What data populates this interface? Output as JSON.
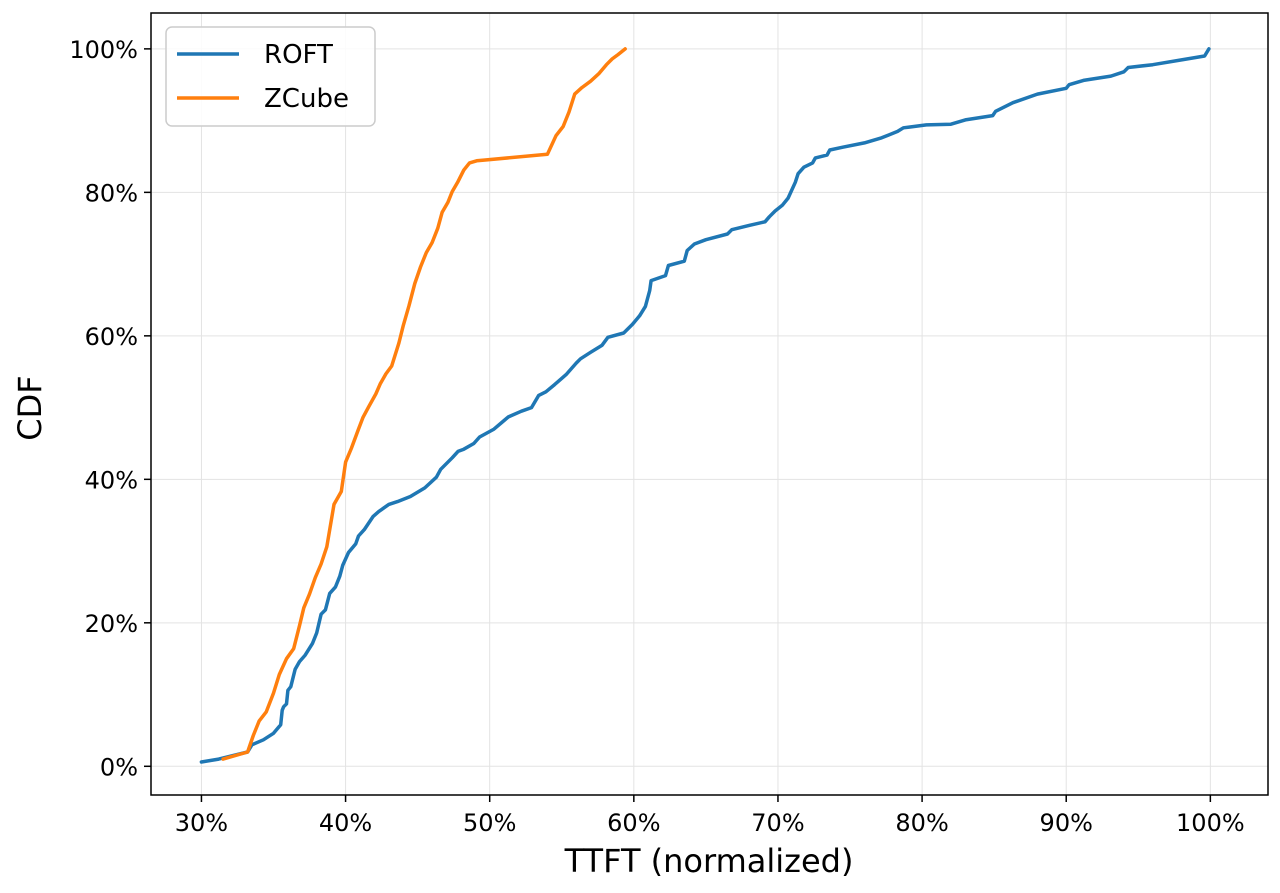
{
  "chart_data": {
    "type": "line",
    "xlabel": "TTFT (normalized)",
    "ylabel": "CDF",
    "xlim": [
      26.5,
      104
    ],
    "ylim": [
      -4,
      105
    ],
    "grid": true,
    "legend_position": "top-left",
    "x_ticks": [
      30,
      40,
      50,
      60,
      70,
      80,
      90,
      100
    ],
    "x_tick_labels": [
      "30%",
      "40%",
      "50%",
      "60%",
      "70%",
      "80%",
      "90%",
      "100%"
    ],
    "y_ticks": [
      0,
      20,
      40,
      60,
      80,
      100
    ],
    "y_tick_labels": [
      "0%",
      "20%",
      "40%",
      "60%",
      "80%",
      "100%"
    ],
    "series": [
      {
        "name": "ROFT",
        "color": "#1f77b4",
        "x": [
          30.0,
          31.2,
          33.2,
          33.5,
          34.3,
          35.0,
          35.5,
          35.6,
          35.7,
          35.9,
          36.0,
          36.2,
          36.5,
          36.8,
          37.2,
          37.7,
          38.0,
          38.3,
          38.6,
          38.9,
          39.3,
          39.6,
          39.8,
          40.2,
          40.7,
          40.9,
          41.3,
          41.9,
          42.3,
          43.0,
          43.6,
          44.5,
          45.5,
          46.3,
          46.6,
          47.4,
          47.8,
          48.2,
          48.9,
          49.3,
          50.3,
          51.0,
          51.3,
          52.2,
          52.9,
          53.4,
          53.9,
          54.5,
          55.3,
          56.0,
          56.3,
          57.0,
          57.8,
          58.2,
          59.3,
          59.9,
          60.4,
          60.8,
          61.1,
          61.2,
          62.2,
          62.4,
          63.5,
          63.7,
          64.2,
          65.0,
          66.5,
          66.8,
          68.0,
          69.1,
          69.4,
          69.8,
          70.3,
          70.7,
          71.2,
          71.4,
          71.8,
          72.4,
          72.6,
          73.4,
          73.6,
          74.5,
          76.0,
          77.2,
          78.3,
          78.7,
          79.1,
          80.3,
          82.0,
          83.0,
          84.9,
          85.1,
          86.3,
          88.0,
          90.0,
          90.2,
          91.2,
          93.1,
          94.0,
          94.3,
          96.0,
          98.1,
          99.6,
          99.9
        ],
        "y": [
          0.6,
          1.0,
          2.0,
          3.0,
          3.7,
          4.6,
          5.8,
          7.8,
          8.3,
          8.7,
          10.6,
          11.1,
          13.5,
          14.6,
          15.5,
          17.1,
          18.6,
          21.2,
          21.8,
          24.1,
          25.0,
          26.5,
          28.0,
          29.8,
          31.0,
          32.1,
          33.0,
          34.8,
          35.5,
          36.5,
          36.9,
          37.6,
          38.8,
          40.3,
          41.4,
          43.0,
          43.9,
          44.2,
          45.0,
          45.9,
          47.0,
          48.2,
          48.7,
          49.5,
          50.0,
          51.7,
          52.2,
          53.2,
          54.6,
          56.2,
          56.8,
          57.7,
          58.7,
          59.8,
          60.4,
          61.6,
          62.8,
          64.1,
          66.3,
          67.7,
          68.4,
          69.8,
          70.4,
          71.9,
          72.8,
          73.4,
          74.2,
          74.8,
          75.4,
          75.9,
          76.6,
          77.4,
          78.2,
          79.2,
          81.4,
          82.6,
          83.5,
          84.1,
          84.8,
          85.2,
          85.9,
          86.3,
          86.9,
          87.6,
          88.5,
          89.0,
          89.1,
          89.4,
          89.5,
          90.1,
          90.7,
          91.3,
          92.5,
          93.7,
          94.5,
          95.0,
          95.6,
          96.2,
          96.8,
          97.4,
          97.8,
          98.5,
          99.0,
          100.0
        ]
      },
      {
        "name": "ZCube",
        "color": "#ff7f0e",
        "x": [
          31.5,
          33.2,
          33.6,
          34.0,
          34.5,
          35.0,
          35.4,
          35.9,
          36.4,
          36.8,
          37.1,
          37.5,
          37.9,
          38.3,
          38.7,
          39.2,
          39.7,
          40.0,
          40.4,
          40.9,
          41.2,
          41.6,
          42.1,
          42.4,
          42.8,
          43.2,
          43.7,
          44.0,
          44.4,
          44.8,
          45.2,
          45.6,
          46.0,
          46.4,
          46.7,
          47.1,
          47.4,
          47.8,
          48.2,
          48.6,
          49.1,
          49.6,
          54.0,
          54.6,
          55.1,
          55.5,
          55.9,
          56.4,
          57.0,
          57.6,
          58.1,
          58.5,
          58.9,
          59.4
        ],
        "y": [
          1.0,
          2.0,
          4.3,
          6.3,
          7.6,
          10.2,
          12.8,
          15.0,
          16.4,
          19.6,
          22.1,
          24.0,
          26.3,
          28.2,
          30.6,
          36.5,
          38.3,
          42.4,
          44.3,
          47.0,
          48.6,
          50.1,
          51.9,
          53.3,
          54.7,
          55.8,
          59.0,
          61.4,
          64.2,
          67.3,
          69.6,
          71.6,
          73.0,
          75.0,
          77.2,
          78.6,
          80.1,
          81.5,
          83.1,
          84.1,
          84.4,
          84.5,
          85.3,
          87.9,
          89.2,
          91.2,
          93.7,
          94.6,
          95.5,
          96.6,
          97.8,
          98.6,
          99.2,
          100.0
        ]
      }
    ]
  }
}
